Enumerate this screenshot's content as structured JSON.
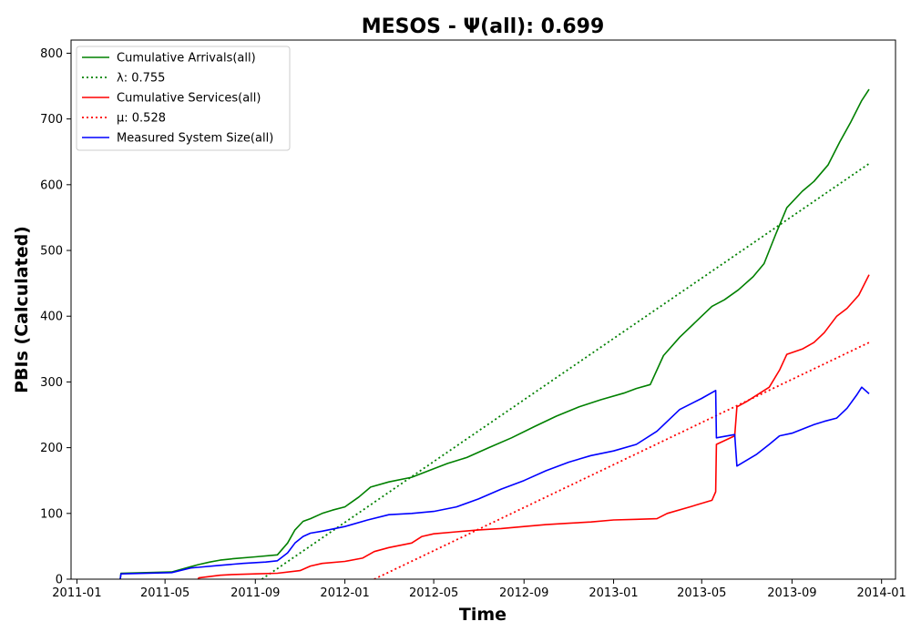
{
  "chart_data": {
    "type": "line",
    "title": "MESOS -  Ψ(all): 0.699",
    "xlabel": "Time",
    "ylabel": "PBIs (Calculated)",
    "xlim": [
      "2010-12-24",
      "2014-01-20"
    ],
    "ylim": [
      0,
      820
    ],
    "x_ticks": [
      "2011-01-01",
      "2011-05-01",
      "2011-09-01",
      "2012-01-01",
      "2012-05-01",
      "2012-09-01",
      "2013-01-01",
      "2013-05-01",
      "2013-09-01",
      "2014-01-01"
    ],
    "x_tick_labels": [
      "2011-01",
      "2011-05",
      "2011-09",
      "2012-01",
      "2012-05",
      "2012-09",
      "2013-01",
      "2013-05",
      "2013-09",
      "2014-01"
    ],
    "y_ticks": [
      0,
      100,
      200,
      300,
      400,
      500,
      600,
      700,
      800
    ],
    "y_tick_labels": [
      "0",
      "100",
      "200",
      "300",
      "400",
      "500",
      "600",
      "700",
      "800"
    ],
    "grid": false,
    "legend_position": "upper-left",
    "series": [
      {
        "name": "Cumulative Arrivals(all)",
        "color": "#008000",
        "style": "solid",
        "x": [
          "2011-03-01",
          "2011-03-02",
          "2011-05-10",
          "2011-06-05",
          "2011-06-15",
          "2011-07-01",
          "2011-07-15",
          "2011-08-01",
          "2011-09-01",
          "2011-10-01",
          "2011-10-15",
          "2011-10-25",
          "2011-11-05",
          "2011-11-15",
          "2011-12-01",
          "2011-12-15",
          "2012-01-01",
          "2012-01-20",
          "2012-02-05",
          "2012-03-01",
          "2012-04-01",
          "2012-05-01",
          "2012-05-20",
          "2012-06-15",
          "2012-07-15",
          "2012-08-15",
          "2012-09-15",
          "2012-10-15",
          "2012-11-15",
          "2012-12-15",
          "2013-01-15",
          "2013-02-01",
          "2013-02-20",
          "2013-03-10",
          "2013-04-01",
          "2013-05-01",
          "2013-05-15",
          "2013-06-01",
          "2013-06-20",
          "2013-07-10",
          "2013-07-25",
          "2013-08-10",
          "2013-08-25",
          "2013-09-15",
          "2013-10-01",
          "2013-10-20",
          "2013-11-05",
          "2013-11-20",
          "2013-12-05",
          "2013-12-15"
        ],
        "y": [
          0,
          9,
          11,
          19,
          22,
          26,
          29,
          31,
          34,
          37,
          55,
          75,
          88,
          92,
          100,
          105,
          110,
          125,
          140,
          148,
          155,
          168,
          176,
          185,
          200,
          215,
          232,
          248,
          262,
          273,
          283,
          290,
          296,
          340,
          368,
          400,
          415,
          425,
          440,
          460,
          480,
          525,
          565,
          590,
          605,
          630,
          665,
          695,
          728,
          745
        ]
      },
      {
        "name": "λ: 0.755",
        "color": "#008000",
        "style": "dotted",
        "x": [
          "2011-09-10",
          "2013-12-15"
        ],
        "y": [
          0,
          632
        ]
      },
      {
        "name": "Cumulative Services(all)",
        "color": "#ff0000",
        "style": "solid",
        "x": [
          "2011-06-15",
          "2011-06-16",
          "2011-07-15",
          "2011-08-01",
          "2011-09-01",
          "2011-10-01",
          "2011-11-01",
          "2011-11-15",
          "2011-12-01",
          "2012-01-01",
          "2012-01-25",
          "2012-02-10",
          "2012-03-01",
          "2012-04-01",
          "2012-04-15",
          "2012-05-01",
          "2012-06-01",
          "2012-07-01",
          "2012-08-01",
          "2012-09-01",
          "2012-10-01",
          "2012-11-01",
          "2012-12-01",
          "2013-01-01",
          "2013-02-01",
          "2013-03-01",
          "2013-03-15",
          "2013-04-15",
          "2013-05-15",
          "2013-05-20",
          "2013-05-21",
          "2013-06-15",
          "2013-06-18",
          "2013-07-01",
          "2013-08-01",
          "2013-08-15",
          "2013-08-25",
          "2013-09-15",
          "2013-10-01",
          "2013-10-15",
          "2013-11-01",
          "2013-11-15",
          "2013-12-01",
          "2013-12-15"
        ],
        "y": [
          0,
          2,
          6,
          7,
          8,
          9,
          13,
          20,
          24,
          27,
          32,
          42,
          48,
          55,
          65,
          69,
          72,
          75,
          77,
          80,
          83,
          85,
          87,
          90,
          91,
          92,
          100,
          110,
          120,
          133,
          205,
          218,
          262,
          270,
          292,
          318,
          342,
          350,
          360,
          375,
          400,
          412,
          432,
          463
        ]
      },
      {
        "name": "μ: 0.528",
        "color": "#ff0000",
        "style": "dotted",
        "x": [
          "2012-02-10",
          "2013-12-15"
        ],
        "y": [
          0,
          360
        ]
      },
      {
        "name": "Measured System Size(all)",
        "color": "#0000ff",
        "style": "solid",
        "x": [
          "2011-03-01",
          "2011-03-02",
          "2011-05-10",
          "2011-06-05",
          "2011-06-15",
          "2011-07-15",
          "2011-08-15",
          "2011-09-15",
          "2011-10-01",
          "2011-10-15",
          "2011-10-25",
          "2011-11-05",
          "2011-11-15",
          "2011-12-01",
          "2012-01-01",
          "2012-02-01",
          "2012-03-01",
          "2012-04-01",
          "2012-05-01",
          "2012-06-01",
          "2012-07-01",
          "2012-08-01",
          "2012-09-01",
          "2012-10-01",
          "2012-11-01",
          "2012-12-01",
          "2013-01-01",
          "2013-02-01",
          "2013-03-01",
          "2013-04-01",
          "2013-05-01",
          "2013-05-20",
          "2013-05-21",
          "2013-06-15",
          "2013-06-18",
          "2013-07-15",
          "2013-08-01",
          "2013-08-15",
          "2013-09-01",
          "2013-10-01",
          "2013-10-15",
          "2013-11-01",
          "2013-11-15",
          "2013-11-28",
          "2013-12-05",
          "2013-12-15"
        ],
        "y": [
          0,
          8,
          10,
          17,
          18,
          21,
          24,
          26,
          28,
          40,
          55,
          65,
          70,
          73,
          80,
          90,
          98,
          100,
          103,
          110,
          122,
          137,
          150,
          165,
          178,
          188,
          195,
          205,
          225,
          258,
          275,
          287,
          215,
          220,
          172,
          190,
          205,
          218,
          222,
          235,
          240,
          245,
          260,
          280,
          292,
          282
        ]
      }
    ]
  }
}
